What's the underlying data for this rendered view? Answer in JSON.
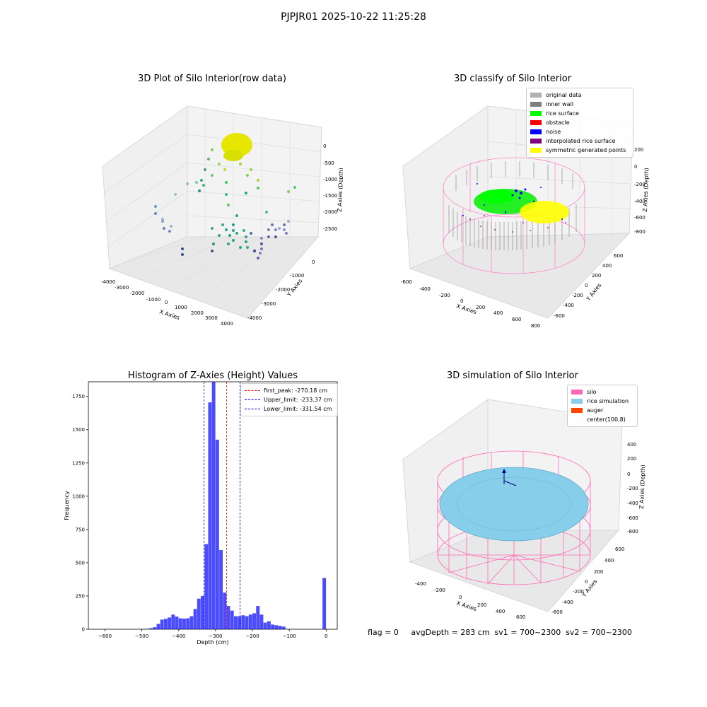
{
  "suptitle": "PJPJR01 2025-10-22 11:25:28",
  "panels": {
    "p1": {
      "title": "3D Plot of Silo Interior(row data)",
      "xlabel": "X Axies",
      "ylabel": "Y Axies",
      "zlabel": "Z Axies (Depth)",
      "xticks": [
        "-4000",
        "-3000",
        "-2000",
        "-1000",
        "0",
        "1000",
        "2000",
        "3000",
        "4000"
      ],
      "yticks": [
        "0",
        "-1000",
        "-2000",
        "-3000",
        "-4000"
      ],
      "zticks": [
        "0",
        "-500",
        "-1000",
        "-1500",
        "-2000",
        "-2500"
      ]
    },
    "p2": {
      "title": "3D classify of Silo Interior",
      "xlabel": "X Axies",
      "ylabel": "Y Axies",
      "zlabel": "Z Axies (Depth)",
      "xticks": [
        "-600",
        "-400",
        "-200",
        "0",
        "200",
        "400",
        "600",
        "800"
      ],
      "yticks": [
        "600",
        "400",
        "200",
        "0",
        "-200",
        "-400",
        "-600"
      ],
      "zticks": [
        "200",
        "0",
        "-200",
        "-400",
        "-600",
        "-800"
      ],
      "legend": [
        {
          "label": "original data",
          "color": "#b0b0b0"
        },
        {
          "label": "inner wall",
          "color": "#808080"
        },
        {
          "label": "rice surface",
          "color": "#00ff00"
        },
        {
          "label": "obstacle",
          "color": "#ff0000"
        },
        {
          "label": "noise",
          "color": "#0000ff"
        },
        {
          "label": "interpolated rice surface",
          "color": "#800080"
        },
        {
          "label": "symmetric generated points",
          "color": "#ffff00"
        }
      ]
    },
    "p4": {
      "title": "3D simulation of Silo Interior",
      "xlabel": "X Axies",
      "ylabel": "Y Axies",
      "zlabel": "Z Axies (Depth)",
      "xticks": [
        "-400",
        "-200",
        "0",
        "200",
        "400",
        "600"
      ],
      "yticks": [
        "600",
        "400",
        "200",
        "0",
        "-200",
        "-400",
        "-600"
      ],
      "zticks": [
        "400",
        "200",
        "0",
        "-200",
        "-400",
        "-600",
        "-800"
      ],
      "legend": [
        {
          "label": "silo",
          "color": "#ff69b4"
        },
        {
          "label": "rice simulation",
          "color": "#87ceeb"
        },
        {
          "label": "auger",
          "color": "#ff4500"
        },
        {
          "label": "center(100,8)",
          "color": ""
        }
      ]
    }
  },
  "status_text": "flag = 0     avgDepth = 283 cm  sv1 = 700~2300  sv2 = 700~2300",
  "chart_data": [
    {
      "type": "bar",
      "title": "Histogram of Z-Axies (Height) Values",
      "xlabel": "Depth (cm)",
      "ylabel": "Frequency",
      "xlim": [
        -645,
        30
      ],
      "ylim": [
        0,
        1860
      ],
      "bin_width": 10,
      "xticks": [
        -600,
        -500,
        -400,
        -300,
        -200,
        -100,
        0
      ],
      "yticks": [
        0,
        250,
        500,
        750,
        1000,
        1250,
        1500,
        1750
      ],
      "bins": [
        {
          "x": -490,
          "value": 3
        },
        {
          "x": -480,
          "value": 8
        },
        {
          "x": -470,
          "value": 15
        },
        {
          "x": -460,
          "value": 40
        },
        {
          "x": -450,
          "value": 72
        },
        {
          "x": -440,
          "value": 78
        },
        {
          "x": -430,
          "value": 88
        },
        {
          "x": -420,
          "value": 110
        },
        {
          "x": -410,
          "value": 95
        },
        {
          "x": -400,
          "value": 82
        },
        {
          "x": -390,
          "value": 80
        },
        {
          "x": -380,
          "value": 82
        },
        {
          "x": -370,
          "value": 98
        },
        {
          "x": -360,
          "value": 152
        },
        {
          "x": -350,
          "value": 230
        },
        {
          "x": -340,
          "value": 250
        },
        {
          "x": -330,
          "value": 640
        },
        {
          "x": -320,
          "value": 1705
        },
        {
          "x": -310,
          "value": 1860
        },
        {
          "x": -300,
          "value": 1425
        },
        {
          "x": -290,
          "value": 595
        },
        {
          "x": -280,
          "value": 275
        },
        {
          "x": -270,
          "value": 175
        },
        {
          "x": -260,
          "value": 140
        },
        {
          "x": -250,
          "value": 98
        },
        {
          "x": -240,
          "value": 98
        },
        {
          "x": -230,
          "value": 105
        },
        {
          "x": -220,
          "value": 98
        },
        {
          "x": -210,
          "value": 110
        },
        {
          "x": -200,
          "value": 120
        },
        {
          "x": -190,
          "value": 175
        },
        {
          "x": -180,
          "value": 110
        },
        {
          "x": -170,
          "value": 50
        },
        {
          "x": -160,
          "value": 60
        },
        {
          "x": -150,
          "value": 35
        },
        {
          "x": -140,
          "value": 30
        },
        {
          "x": -130,
          "value": 25
        },
        {
          "x": -120,
          "value": 20
        },
        {
          "x": -10,
          "value": 385
        }
      ],
      "bar_color": "#0000ff",
      "vlines": [
        {
          "label": "first_peak: -270.18 cm",
          "x": -270.18,
          "color": "#ff0000"
        },
        {
          "label": "Upper_limit: -233.37 cm",
          "x": -233.37,
          "color": "#0000ff"
        },
        {
          "label": "Lower_limit: -331.54 cm",
          "x": -331.54,
          "color": "#0000ff"
        }
      ],
      "legend": "top-right"
    }
  ]
}
